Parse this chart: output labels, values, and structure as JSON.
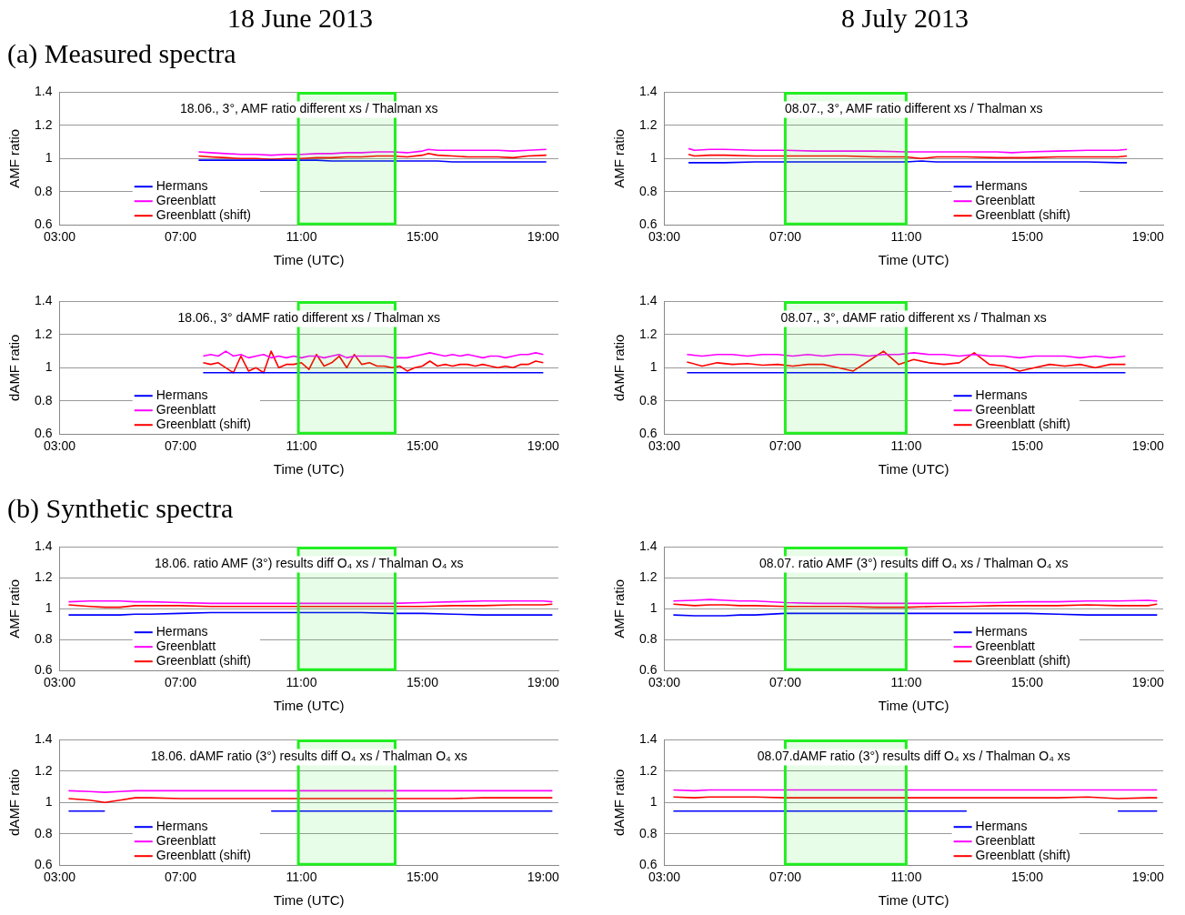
{
  "chart_data": [
    {
      "type": "line",
      "title": "18 June 2013",
      "subtitle": "(a) Measured spectra",
      "xlabel": "Time (UTC)",
      "ylabel": "AMF ratio",
      "annotations": [
        "18.06., 3°, AMF ratio different xs / Thalman xs"
      ],
      "x": [
        7.6,
        8,
        8.5,
        9,
        9.5,
        10,
        10.5,
        11,
        11.5,
        12,
        12.5,
        13,
        13.5,
        14,
        14.5,
        15,
        15.2,
        15.5,
        16,
        16.5,
        17,
        17.5,
        18,
        18.5,
        19.1
      ],
      "series": [
        {
          "name": "Hermans",
          "color": "#0000ff",
          "values": [
            0.99,
            0.99,
            0.99,
            0.99,
            0.99,
            0.99,
            0.99,
            0.99,
            0.99,
            0.985,
            0.985,
            0.985,
            0.985,
            0.985,
            0.985,
            0.985,
            0.985,
            0.985,
            0.98,
            0.98,
            0.98,
            0.98,
            0.98,
            0.98,
            0.98
          ]
        },
        {
          "name": "Greenblatt",
          "color": "#ff00ff",
          "values": [
            1.04,
            1.035,
            1.03,
            1.025,
            1.025,
            1.02,
            1.025,
            1.025,
            1.03,
            1.03,
            1.035,
            1.035,
            1.04,
            1.04,
            1.035,
            1.045,
            1.055,
            1.05,
            1.05,
            1.05,
            1.05,
            1.05,
            1.045,
            1.05,
            1.055
          ]
        },
        {
          "name": "Greenblatt (shift)",
          "color": "#ff0000",
          "values": [
            1.015,
            1.01,
            1.005,
            1.0,
            1.0,
            0.995,
            1.0,
            1.0,
            1.005,
            1.005,
            1.01,
            1.01,
            1.015,
            1.015,
            1.01,
            1.02,
            1.03,
            1.02,
            1.015,
            1.01,
            1.01,
            1.01,
            1.005,
            1.015,
            1.02
          ]
        }
      ],
      "xlim": [
        3,
        19.5
      ],
      "xticks": [
        {
          "value": 3,
          "label": "03:00"
        },
        {
          "value": 7,
          "label": "07:00"
        },
        {
          "value": 11,
          "label": "11:00"
        },
        {
          "value": 15,
          "label": "15:00"
        },
        {
          "value": 19,
          "label": "19:00"
        }
      ],
      "ylim": [
        0.6,
        1.4
      ],
      "yticks": [
        0.6,
        0.8,
        1,
        1.2,
        1.4
      ],
      "bands": [
        {
          "axis": "x",
          "from": 10.9,
          "to": 14.1,
          "color": "#22ee22"
        }
      ],
      "grid": "y",
      "legend": "bottom left",
      "marker": "none",
      "line_style": "solid"
    },
    {
      "type": "line",
      "title": "8 July 2013",
      "xlabel": "Time (UTC)",
      "ylabel": "AMF ratio",
      "annotations": [
        "08.07., 3°, AMF ratio different xs / Thalman xs"
      ],
      "x": [
        3.8,
        4,
        4.5,
        5,
        6,
        7,
        8,
        9,
        10,
        11,
        11.5,
        12,
        13,
        14,
        14.5,
        15,
        16,
        17,
        18,
        18.3
      ],
      "series": [
        {
          "name": "Hermans",
          "color": "#0000ff",
          "values": [
            0.975,
            0.975,
            0.975,
            0.975,
            0.98,
            0.98,
            0.98,
            0.98,
            0.98,
            0.98,
            0.985,
            0.98,
            0.98,
            0.98,
            0.98,
            0.98,
            0.98,
            0.98,
            0.975,
            0.975
          ]
        },
        {
          "name": "Greenblatt",
          "color": "#ff00ff",
          "values": [
            1.06,
            1.05,
            1.055,
            1.055,
            1.05,
            1.05,
            1.045,
            1.045,
            1.045,
            1.04,
            1.04,
            1.04,
            1.04,
            1.04,
            1.035,
            1.04,
            1.045,
            1.05,
            1.05,
            1.055
          ]
        },
        {
          "name": "Greenblatt (shift)",
          "color": "#ff0000",
          "values": [
            1.025,
            1.015,
            1.02,
            1.02,
            1.015,
            1.015,
            1.015,
            1.015,
            1.01,
            1.01,
            1.0,
            1.01,
            1.01,
            1.005,
            1.005,
            1.005,
            1.01,
            1.01,
            1.01,
            1.015
          ]
        }
      ],
      "xlim": [
        3,
        19.5
      ],
      "xticks": [
        {
          "value": 3,
          "label": "03:00"
        },
        {
          "value": 7,
          "label": "07:00"
        },
        {
          "value": 11,
          "label": "11:00"
        },
        {
          "value": 15,
          "label": "15:00"
        },
        {
          "value": 19,
          "label": "19:00"
        }
      ],
      "ylim": [
        0.6,
        1.4
      ],
      "yticks": [
        0.6,
        0.8,
        1,
        1.2,
        1.4
      ],
      "bands": [
        {
          "axis": "x",
          "from": 7,
          "to": 11,
          "color": "#22ee22"
        }
      ],
      "grid": "y",
      "legend": "bottom right",
      "marker": "none",
      "line_style": "solid"
    },
    {
      "type": "line",
      "xlabel": "Time (UTC)",
      "ylabel": "dAMF ratio",
      "annotations": [
        "18.06., 3° dAMF ratio different xs / Thalman xs"
      ],
      "x": [
        7.75,
        8,
        8.25,
        8.5,
        8.75,
        9,
        9.25,
        9.5,
        9.75,
        10,
        10.25,
        10.5,
        10.75,
        11,
        11.25,
        11.5,
        11.75,
        12,
        12.25,
        12.5,
        12.75,
        13,
        13.25,
        13.5,
        13.75,
        14,
        14.25,
        14.5,
        14.75,
        15,
        15.25,
        15.5,
        15.75,
        16,
        16.25,
        16.5,
        16.75,
        17,
        17.25,
        17.5,
        17.75,
        18,
        18.25,
        18.5,
        18.75,
        19
      ],
      "series": [
        {
          "name": "Hermans",
          "color": "#0000ff",
          "values": [
            0.97,
            0.97,
            0.97,
            0.97,
            0.97,
            0.97,
            0.97,
            0.97,
            0.97,
            0.97,
            0.97,
            0.97,
            0.97,
            0.97,
            0.97,
            0.97,
            0.97,
            0.97,
            0.97,
            0.97,
            0.97,
            0.97,
            0.97,
            0.97,
            0.97,
            0.97,
            0.97,
            0.97,
            0.97,
            0.97,
            0.97,
            0.97,
            0.97,
            0.97,
            0.97,
            0.97,
            0.97,
            0.97,
            0.97,
            0.97,
            0.97,
            0.97,
            0.97,
            0.97,
            0.97,
            0.97
          ]
        },
        {
          "name": "Greenblatt",
          "color": "#ff00ff",
          "values": [
            1.07,
            1.08,
            1.07,
            1.1,
            1.07,
            1.08,
            1.06,
            1.07,
            1.08,
            1.06,
            1.07,
            1.06,
            1.07,
            1.06,
            1.07,
            1.07,
            1.06,
            1.07,
            1.08,
            1.06,
            1.07,
            1.07,
            1.07,
            1.07,
            1.07,
            1.06,
            1.06,
            1.06,
            1.07,
            1.08,
            1.09,
            1.08,
            1.07,
            1.08,
            1.07,
            1.08,
            1.07,
            1.06,
            1.07,
            1.07,
            1.06,
            1.07,
            1.08,
            1.08,
            1.09,
            1.08
          ]
        },
        {
          "name": "Greenblatt (shift)",
          "color": "#ff0000",
          "values": [
            1.03,
            1.02,
            1.03,
            1.0,
            0.97,
            1.07,
            0.98,
            1.0,
            0.97,
            1.1,
            1.0,
            1.02,
            1.02,
            1.03,
            0.99,
            1.08,
            1.01,
            1.03,
            1.07,
            1.0,
            1.08,
            1.02,
            1.03,
            1.01,
            1.01,
            1.0,
            1.01,
            0.98,
            1.0,
            1.01,
            1.04,
            1.01,
            1.02,
            1.01,
            1.02,
            1.02,
            1.01,
            1.02,
            1.01,
            1.0,
            1.01,
            1.0,
            1.02,
            1.02,
            1.04,
            1.03
          ]
        }
      ],
      "xlim": [
        3,
        19.5
      ],
      "xticks": [
        {
          "value": 3,
          "label": "03:00"
        },
        {
          "value": 7,
          "label": "07:00"
        },
        {
          "value": 11,
          "label": "11:00"
        },
        {
          "value": 15,
          "label": "15:00"
        },
        {
          "value": 19,
          "label": "19:00"
        }
      ],
      "ylim": [
        0.6,
        1.4
      ],
      "yticks": [
        0.6,
        0.8,
        1,
        1.2,
        1.4
      ],
      "bands": [
        {
          "axis": "x",
          "from": 10.9,
          "to": 14.1,
          "color": "#22ee22"
        }
      ],
      "grid": "y",
      "legend": "bottom left",
      "marker": "none",
      "line_style": "solid"
    },
    {
      "type": "line",
      "xlabel": "Time (UTC)",
      "ylabel": "dAMF ratio",
      "annotations": [
        "08.07., 3°, dAMF ratio different xs / Thalman xs"
      ],
      "x": [
        3.75,
        4.25,
        4.75,
        5.25,
        5.75,
        6.25,
        6.75,
        7.25,
        7.75,
        8.25,
        8.75,
        9.25,
        9.75,
        10.25,
        10.75,
        11.25,
        11.75,
        12.25,
        12.75,
        13.25,
        13.75,
        14.25,
        14.75,
        15.25,
        15.75,
        16.25,
        16.75,
        17.25,
        17.75,
        18.25
      ],
      "series": [
        {
          "name": "Hermans",
          "color": "#0000ff",
          "values": [
            0.97,
            0.97,
            0.97,
            0.97,
            0.97,
            0.97,
            0.97,
            0.97,
            0.97,
            0.97,
            0.97,
            0.97,
            0.97,
            0.97,
            0.97,
            0.97,
            0.97,
            0.97,
            0.97,
            0.97,
            0.97,
            0.97,
            0.97,
            0.97,
            0.97,
            0.97,
            0.97,
            0.97,
            0.97,
            0.97
          ]
        },
        {
          "name": "Greenblatt",
          "color": "#ff00ff",
          "values": [
            1.08,
            1.07,
            1.08,
            1.08,
            1.07,
            1.08,
            1.08,
            1.07,
            1.08,
            1.07,
            1.08,
            1.08,
            1.07,
            1.08,
            1.08,
            1.09,
            1.08,
            1.08,
            1.07,
            1.08,
            1.07,
            1.07,
            1.06,
            1.07,
            1.07,
            1.07,
            1.06,
            1.07,
            1.06,
            1.07
          ]
        },
        {
          "name": "Greenblatt (shift)",
          "color": "#ff0000",
          "values": [
            1.035,
            1.01,
            1.03,
            1.02,
            1.025,
            1.015,
            1.02,
            1.01,
            1.02,
            1.02,
            1.0,
            0.98,
            1.04,
            1.1,
            1.02,
            1.05,
            1.03,
            1.02,
            1.03,
            1.09,
            1.02,
            1.01,
            0.98,
            1.0,
            1.02,
            1.01,
            1.02,
            1.0,
            1.02,
            1.02
          ]
        }
      ],
      "xlim": [
        3,
        19.5
      ],
      "xticks": [
        {
          "value": 3,
          "label": "03:00"
        },
        {
          "value": 7,
          "label": "07:00"
        },
        {
          "value": 11,
          "label": "11:00"
        },
        {
          "value": 15,
          "label": "15:00"
        },
        {
          "value": 19,
          "label": "19:00"
        }
      ],
      "ylim": [
        0.6,
        1.4
      ],
      "yticks": [
        0.6,
        0.8,
        1,
        1.2,
        1.4
      ],
      "bands": [
        {
          "axis": "x",
          "from": 7,
          "to": 11,
          "color": "#22ee22"
        }
      ],
      "grid": "y",
      "legend": "bottom right",
      "marker": "none",
      "line_style": "solid"
    },
    {
      "type": "line",
      "subtitle": "(b) Synthetic spectra",
      "xlabel": "Time (UTC)",
      "ylabel": "AMF ratio",
      "annotations": [
        "18.06. ratio AMF (3°) results diff O₄ xs / Thalman O₄ xs"
      ],
      "x": [
        3.3,
        4,
        4.5,
        5,
        5.5,
        6,
        7,
        8,
        9,
        10,
        11,
        12,
        13,
        14,
        15,
        16,
        17,
        18,
        19,
        19.3
      ],
      "series": [
        {
          "name": "Hermans",
          "color": "#0000ff",
          "values": [
            0.96,
            0.96,
            0.96,
            0.96,
            0.965,
            0.965,
            0.97,
            0.975,
            0.975,
            0.975,
            0.975,
            0.975,
            0.975,
            0.97,
            0.97,
            0.965,
            0.96,
            0.96,
            0.96,
            0.96
          ]
        },
        {
          "name": "Greenblatt",
          "color": "#ff00ff",
          "values": [
            1.045,
            1.05,
            1.05,
            1.05,
            1.045,
            1.045,
            1.04,
            1.035,
            1.035,
            1.035,
            1.035,
            1.035,
            1.035,
            1.035,
            1.04,
            1.045,
            1.05,
            1.05,
            1.05,
            1.045
          ]
        },
        {
          "name": "Greenblatt (shift)",
          "color": "#ff0000",
          "values": [
            1.025,
            1.015,
            1.01,
            1.01,
            1.02,
            1.02,
            1.02,
            1.015,
            1.015,
            1.015,
            1.015,
            1.015,
            1.015,
            1.015,
            1.015,
            1.02,
            1.02,
            1.025,
            1.025,
            1.03
          ]
        }
      ],
      "xlim": [
        3,
        19.5
      ],
      "xticks": [
        {
          "value": 3,
          "label": "03:00"
        },
        {
          "value": 7,
          "label": "07:00"
        },
        {
          "value": 11,
          "label": "11:00"
        },
        {
          "value": 15,
          "label": "15:00"
        },
        {
          "value": 19,
          "label": "19:00"
        }
      ],
      "ylim": [
        0.6,
        1.4
      ],
      "yticks": [
        0.6,
        0.8,
        1,
        1.2,
        1.4
      ],
      "bands": [
        {
          "axis": "x",
          "from": 10.9,
          "to": 14.1,
          "color": "#22ee22"
        }
      ],
      "grid": "y",
      "legend": "bottom left",
      "marker": "none",
      "line_style": "solid"
    },
    {
      "type": "line",
      "xlabel": "Time (UTC)",
      "ylabel": "AMF ratio",
      "annotations": [
        "08.07. ratio AMF (3°) results diff O₄ xs / Thalman O₄ xs"
      ],
      "x": [
        3.3,
        4,
        4.5,
        5,
        5.5,
        6,
        7,
        8,
        9,
        10,
        11,
        12,
        13,
        14,
        15,
        16,
        17,
        18,
        19,
        19.3
      ],
      "series": [
        {
          "name": "Hermans",
          "color": "#0000ff",
          "values": [
            0.96,
            0.955,
            0.955,
            0.955,
            0.96,
            0.96,
            0.97,
            0.97,
            0.97,
            0.97,
            0.97,
            0.97,
            0.97,
            0.97,
            0.97,
            0.965,
            0.96,
            0.96,
            0.96,
            0.96
          ]
        },
        {
          "name": "Greenblatt",
          "color": "#ff00ff",
          "values": [
            1.05,
            1.055,
            1.06,
            1.055,
            1.05,
            1.05,
            1.04,
            1.035,
            1.035,
            1.035,
            1.035,
            1.035,
            1.04,
            1.04,
            1.045,
            1.045,
            1.05,
            1.05,
            1.055,
            1.05
          ]
        },
        {
          "name": "Greenblatt (shift)",
          "color": "#ff0000",
          "values": [
            1.03,
            1.02,
            1.025,
            1.025,
            1.02,
            1.02,
            1.015,
            1.015,
            1.015,
            1.01,
            1.01,
            1.015,
            1.015,
            1.02,
            1.02,
            1.02,
            1.025,
            1.02,
            1.02,
            1.03
          ]
        }
      ],
      "xlim": [
        3,
        19.5
      ],
      "xticks": [
        {
          "value": 3,
          "label": "03:00"
        },
        {
          "value": 7,
          "label": "07:00"
        },
        {
          "value": 11,
          "label": "11:00"
        },
        {
          "value": 15,
          "label": "15:00"
        },
        {
          "value": 19,
          "label": "19:00"
        }
      ],
      "ylim": [
        0.6,
        1.4
      ],
      "yticks": [
        0.6,
        0.8,
        1,
        1.2,
        1.4
      ],
      "bands": [
        {
          "axis": "x",
          "from": 7,
          "to": 11,
          "color": "#22ee22"
        }
      ],
      "grid": "y",
      "legend": "bottom right",
      "marker": "none",
      "line_style": "solid"
    },
    {
      "type": "line",
      "xlabel": "Time (UTC)",
      "ylabel": "dAMF ratio",
      "annotations": [
        "18.06. dAMF ratio (3°) results diff O₄ xs / Thalman O₄ xs"
      ],
      "x": [
        3.3,
        4,
        4.5,
        5,
        5.5,
        6,
        7,
        8,
        9,
        10,
        11,
        12,
        13,
        14,
        15,
        16,
        17,
        18,
        19,
        19.3
      ],
      "series": [
        {
          "name": "Hermans",
          "color": "#0000ff",
          "values": [
            0.945,
            0.945,
            0.945,
            null,
            null,
            null,
            null,
            null,
            null,
            0.945,
            0.945,
            0.945,
            0.945,
            0.945,
            0.945,
            0.945,
            0.945,
            0.945,
            0.945,
            0.945
          ]
        },
        {
          "name": "Greenblatt",
          "color": "#ff00ff",
          "values": [
            1.075,
            1.07,
            1.065,
            1.07,
            1.075,
            1.075,
            1.075,
            1.075,
            1.075,
            1.075,
            1.075,
            1.075,
            1.075,
            1.075,
            1.075,
            1.075,
            1.075,
            1.075,
            1.075,
            1.075
          ]
        },
        {
          "name": "Greenblatt (shift)",
          "color": "#ff0000",
          "values": [
            1.025,
            1.015,
            1.0,
            1.015,
            1.03,
            1.03,
            1.025,
            1.025,
            1.025,
            1.025,
            1.025,
            1.025,
            1.025,
            1.025,
            1.025,
            1.025,
            1.03,
            1.03,
            1.03,
            1.03
          ]
        }
      ],
      "xlim": [
        3,
        19.5
      ],
      "xticks": [
        {
          "value": 3,
          "label": "03:00"
        },
        {
          "value": 7,
          "label": "07:00"
        },
        {
          "value": 11,
          "label": "11:00"
        },
        {
          "value": 15,
          "label": "15:00"
        },
        {
          "value": 19,
          "label": "19:00"
        }
      ],
      "ylim": [
        0.6,
        1.4
      ],
      "yticks": [
        0.6,
        0.8,
        1,
        1.2,
        1.4
      ],
      "bands": [
        {
          "axis": "x",
          "from": 10.9,
          "to": 14.1,
          "color": "#22ee22"
        }
      ],
      "grid": "y",
      "legend": "bottom left",
      "marker": "none",
      "line_style": "solid"
    },
    {
      "type": "line",
      "xlabel": "Time (UTC)",
      "ylabel": "dAMF ratio",
      "annotations": [
        "08.07.dAMF ratio (3°) results diff O₄ xs / Thalman O₄ xs"
      ],
      "x": [
        3.3,
        4,
        4.5,
        5,
        5.5,
        6,
        7,
        8,
        9,
        10,
        11,
        12,
        13,
        14,
        15,
        16,
        17,
        18,
        19,
        19.3
      ],
      "series": [
        {
          "name": "Hermans",
          "color": "#0000ff",
          "values": [
            0.945,
            0.945,
            0.945,
            0.945,
            0.945,
            0.945,
            0.945,
            0.945,
            0.945,
            0.945,
            0.945,
            0.945,
            0.945,
            null,
            null,
            null,
            null,
            0.945,
            0.945,
            0.945
          ]
        },
        {
          "name": "Greenblatt",
          "color": "#ff00ff",
          "values": [
            1.08,
            1.075,
            1.08,
            1.08,
            1.08,
            1.08,
            1.08,
            1.08,
            1.08,
            1.08,
            1.08,
            1.08,
            1.08,
            1.08,
            1.08,
            1.08,
            1.08,
            1.08,
            1.08,
            1.08
          ]
        },
        {
          "name": "Greenblatt (shift)",
          "color": "#ff0000",
          "values": [
            1.035,
            1.03,
            1.035,
            1.035,
            1.035,
            1.035,
            1.03,
            1.03,
            1.03,
            1.03,
            1.03,
            1.03,
            1.03,
            1.03,
            1.03,
            1.03,
            1.035,
            1.025,
            1.03,
            1.03
          ]
        }
      ],
      "xlim": [
        3,
        19.5
      ],
      "xticks": [
        {
          "value": 3,
          "label": "03:00"
        },
        {
          "value": 7,
          "label": "07:00"
        },
        {
          "value": 11,
          "label": "11:00"
        },
        {
          "value": 15,
          "label": "15:00"
        },
        {
          "value": 19,
          "label": "19:00"
        }
      ],
      "ylim": [
        0.6,
        1.4
      ],
      "yticks": [
        0.6,
        0.8,
        1,
        1.2,
        1.4
      ],
      "bands": [
        {
          "axis": "x",
          "from": 7,
          "to": 11,
          "color": "#22ee22"
        }
      ],
      "grid": "y",
      "legend": "bottom right",
      "marker": "none",
      "line_style": "solid"
    }
  ]
}
